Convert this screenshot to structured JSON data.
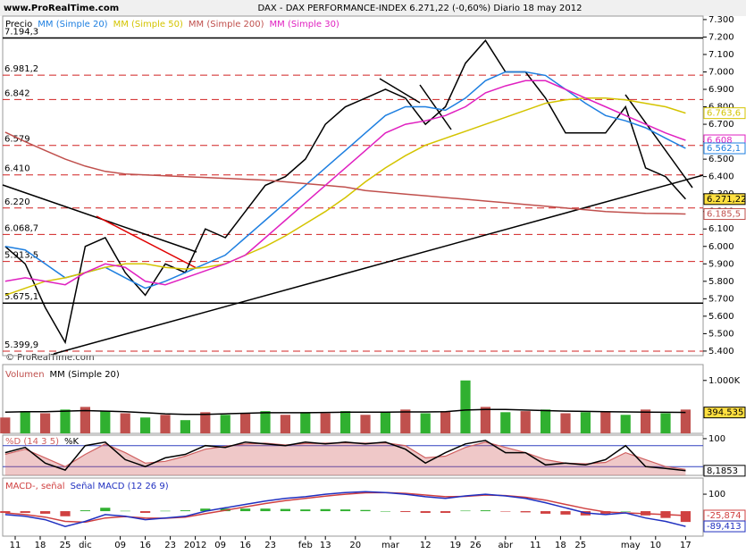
{
  "header": {
    "site": "www.ProRealTime.com",
    "watermark": "© ProRealTime.com"
  },
  "chart_data": [
    {
      "type": "line",
      "title": "DAX - DAX PERFORMANCE-INDEX   6.271,22 (-0,60%)   Diario  18 may 2012",
      "x": [
        -2,
        2,
        6,
        10,
        14,
        18,
        22,
        26,
        30,
        34,
        38,
        42,
        46,
        50,
        54,
        58,
        62,
        66,
        70,
        74,
        78,
        82,
        86,
        90,
        94,
        98,
        102,
        106,
        110,
        114,
        118,
        122,
        126,
        130,
        134
      ],
      "xlim": [
        -2.5,
        137.5
      ],
      "ylim": [
        5374,
        7320
      ],
      "yticks": [
        {
          "value": 5400,
          "label": "5.400"
        },
        {
          "value": 5500,
          "label": "5.500"
        },
        {
          "value": 5600,
          "label": "5.600"
        },
        {
          "value": 5700,
          "label": "5.700"
        },
        {
          "value": 5800,
          "label": "5.800"
        },
        {
          "value": 5900,
          "label": "5.900"
        },
        {
          "value": 6000,
          "label": "6.000"
        },
        {
          "value": 6100,
          "label": "6.100"
        },
        {
          "value": 6200,
          "label": "6.200"
        },
        {
          "value": 6300,
          "label": "6.300"
        },
        {
          "value": 6400,
          "label": "6.400"
        },
        {
          "value": 6500,
          "label": "6.500"
        },
        {
          "value": 6600,
          "label": "6.600"
        },
        {
          "value": 6700,
          "label": "6.700"
        },
        {
          "value": 6800,
          "label": "6.800"
        },
        {
          "value": 6900,
          "label": "6.900"
        },
        {
          "value": 7000,
          "label": "7.000"
        },
        {
          "value": 7100,
          "label": "7.100"
        },
        {
          "value": 7200,
          "label": "7.200"
        },
        {
          "value": 7300,
          "label": "7.300"
        }
      ],
      "series": [
        {
          "name": "Precio",
          "color": "#000000",
          "type": "line",
          "values": [
            6000,
            5900,
            5650,
            5450,
            6000,
            6050,
            5850,
            5720,
            5900,
            5850,
            6100,
            6050,
            6200,
            6350,
            6400,
            6500,
            6700,
            6800,
            6850,
            6900,
            6850,
            6700,
            6800,
            7050,
            7180,
            7000,
            7000,
            6850,
            6650,
            6650,
            6650,
            6800,
            6450,
            6400,
            6271.22
          ]
        },
        {
          "name": "MM (Simple 20)",
          "color": "#1e7fe0",
          "type": "line",
          "values": [
            6000,
            5980,
            5900,
            5820,
            5850,
            5880,
            5820,
            5760,
            5800,
            5850,
            5900,
            5950,
            6050,
            6150,
            6250,
            6350,
            6450,
            6550,
            6650,
            6750,
            6800,
            6800,
            6780,
            6850,
            6950,
            7000,
            7000,
            6980,
            6900,
            6820,
            6750,
            6720,
            6680,
            6620,
            6562.1
          ]
        },
        {
          "name": "MM (Simple 50)",
          "color": "#d4c400",
          "type": "line",
          "values": [
            5720,
            5760,
            5800,
            5820,
            5850,
            5880,
            5900,
            5900,
            5880,
            5870,
            5880,
            5900,
            5950,
            6000,
            6060,
            6130,
            6200,
            6280,
            6370,
            6450,
            6520,
            6580,
            6620,
            6660,
            6700,
            6740,
            6780,
            6820,
            6840,
            6850,
            6850,
            6840,
            6820,
            6800,
            6763.6
          ]
        },
        {
          "name": "MM (Simple 200)",
          "color": "#c0504d",
          "type": "line",
          "values": [
            6655,
            6600,
            6550,
            6500,
            6460,
            6430,
            6415,
            6410,
            6405,
            6400,
            6395,
            6390,
            6385,
            6380,
            6370,
            6360,
            6350,
            6340,
            6320,
            6310,
            6300,
            6290,
            6280,
            6270,
            6260,
            6250,
            6240,
            6230,
            6220,
            6210,
            6200,
            6195,
            6190,
            6188,
            6185.5
          ]
        },
        {
          "name": "MM (Simple 30)",
          "color": "#e020c0",
          "type": "line",
          "values": [
            5800,
            5820,
            5800,
            5780,
            5850,
            5900,
            5880,
            5800,
            5780,
            5820,
            5860,
            5900,
            5950,
            6050,
            6150,
            6250,
            6350,
            6450,
            6550,
            6650,
            6700,
            6720,
            6750,
            6800,
            6880,
            6920,
            6950,
            6950,
            6900,
            6850,
            6800,
            6750,
            6700,
            6650,
            6608
          ]
        }
      ],
      "levels": [
        {
          "value": 7194.3,
          "label": "7.194,3",
          "style": "solid"
        },
        {
          "value": 6981.2,
          "label": "6.981,2",
          "style": "dashed"
        },
        {
          "value": 6842,
          "label": "6.842",
          "style": "dashed"
        },
        {
          "value": 6579,
          "label": "6.579",
          "style": "dashed"
        },
        {
          "value": 6410,
          "label": "6.410",
          "style": "dashed"
        },
        {
          "value": 6220,
          "label": "6.220",
          "style": "dashed"
        },
        {
          "value": 6068.7,
          "label": "6.068,7",
          "style": "dashed"
        },
        {
          "value": 5913.5,
          "label": "5.913,5",
          "style": "dashed"
        },
        {
          "value": 5675.1,
          "label": "5.675,1",
          "style": "solid"
        },
        {
          "value": 5399.9,
          "label": "5.399,9",
          "style": "dashed"
        }
      ],
      "value_tags": [
        {
          "value": 6763.6,
          "label": "6.763,6",
          "color": "#d4c400"
        },
        {
          "value": 6608,
          "label": "6.608",
          "color": "#e020c0"
        },
        {
          "value": 6562.1,
          "label": "6.562,1",
          "color": "#1e7fe0"
        },
        {
          "value": 6271.22,
          "label": "6.271,22",
          "color": "#000000"
        },
        {
          "value": 6185.5,
          "label": "6.185,5",
          "color": "#c0504d"
        }
      ]
    },
    {
      "type": "bar",
      "x": [
        -2,
        2,
        6,
        10,
        14,
        18,
        22,
        26,
        30,
        34,
        38,
        42,
        46,
        50,
        54,
        58,
        62,
        66,
        70,
        74,
        78,
        82,
        86,
        90,
        94,
        98,
        102,
        106,
        110,
        114,
        118,
        122,
        126,
        130,
        134
      ],
      "xlim": [
        -2.5,
        137.5
      ],
      "ylim": [
        0,
        1300
      ],
      "yticks": [
        {
          "value": 1000,
          "label": "1.000K"
        }
      ],
      "series": [
        {
          "name": "Volumen",
          "color": "#c0504d",
          "type": "bar",
          "values": [
            300,
            420,
            380,
            450,
            500,
            420,
            380,
            300,
            350,
            250,
            400,
            350,
            380,
            420,
            350,
            400,
            380,
            420,
            350,
            400,
            450,
            380,
            420,
            1000,
            500,
            400,
            420,
            450,
            380,
            400,
            420,
            350,
            450,
            380,
            450
          ]
        },
        {
          "name": "MM (Simple 20)",
          "color": "#000000",
          "type": "line",
          "values": [
            400,
            410,
            410,
            420,
            430,
            420,
            410,
            390,
            370,
            360,
            360,
            370,
            380,
            390,
            390,
            390,
            395,
            400,
            400,
            400,
            405,
            405,
            410,
            440,
            450,
            450,
            440,
            430,
            420,
            415,
            410,
            405,
            400,
            398,
            394.535
          ]
        }
      ],
      "value_tags": [
        {
          "value": 394.535,
          "label": "394.535",
          "color": "#000000"
        }
      ]
    },
    {
      "type": "line",
      "x": [
        -2,
        2,
        6,
        10,
        14,
        18,
        22,
        26,
        30,
        34,
        38,
        42,
        46,
        50,
        54,
        58,
        62,
        66,
        70,
        74,
        78,
        82,
        86,
        90,
        94,
        98,
        102,
        106,
        110,
        114,
        118,
        122,
        126,
        130,
        134
      ],
      "xlim": [
        -2.5,
        137.5
      ],
      "ylim": [
        -5,
        110
      ],
      "yticks": [
        100
      ],
      "series": [
        {
          "name": "%D (14 3 5)",
          "color": "#d06060",
          "type": "area",
          "values": [
            55,
            70,
            45,
            20,
            55,
            85,
            60,
            30,
            35,
            50,
            70,
            78,
            85,
            87,
            82,
            86,
            87,
            88,
            87,
            88,
            80,
            45,
            50,
            75,
            90,
            75,
            60,
            40,
            30,
            28,
            32,
            60,
            40,
            20,
            12
          ]
        },
        {
          "name": "%K",
          "color": "#000000",
          "type": "line",
          "values": [
            60,
            75,
            30,
            10,
            80,
            90,
            40,
            20,
            45,
            55,
            80,
            75,
            90,
            85,
            80,
            90,
            85,
            90,
            85,
            90,
            70,
            30,
            60,
            85,
            95,
            60,
            60,
            25,
            30,
            25,
            40,
            80,
            20,
            15,
            8.1853
          ]
        }
      ],
      "guides": [
        20,
        80
      ],
      "value_tags": [
        {
          "value": 8.1853,
          "label": "8,1853",
          "color": "#000000"
        }
      ]
    },
    {
      "type": "line",
      "x": [
        -2,
        2,
        6,
        10,
        14,
        18,
        22,
        26,
        30,
        34,
        38,
        42,
        46,
        50,
        54,
        58,
        62,
        66,
        70,
        74,
        78,
        82,
        86,
        90,
        94,
        98,
        102,
        106,
        110,
        114,
        118,
        122,
        126,
        130,
        134
      ],
      "xlim": [
        -2.5,
        137.5
      ],
      "ylim": [
        -147,
        195
      ],
      "yticks": [
        100
      ],
      "series": [
        {
          "type": "histogram",
          "values": [
            -10,
            -10,
            -15,
            -30,
            5,
            20,
            2,
            -10,
            2,
            5,
            15,
            15,
            15,
            15,
            13,
            10,
            12,
            10,
            7,
            0,
            -5,
            -10,
            -10,
            3,
            5,
            -2,
            -7,
            -15,
            -20,
            -25,
            -15,
            0,
            -25,
            -40,
            -63.5
          ]
        },
        {
          "name": "MACD-, señal",
          "color": "#d04040",
          "type": "line",
          "values": [
            -10,
            -20,
            -35,
            -60,
            -65,
            -40,
            -32,
            -40,
            -42,
            -35,
            -15,
            5,
            25,
            45,
            62,
            75,
            88,
            100,
            108,
            110,
            105,
            95,
            85,
            87,
            95,
            92,
            82,
            65,
            40,
            15,
            -5,
            -10,
            -15,
            -20,
            -25.874
          ]
        },
        {
          "name": "Señal MACD (12 26 9)",
          "color": "#2030c0",
          "type": "line",
          "values": [
            -20,
            -30,
            -50,
            -90,
            -60,
            -20,
            -30,
            -50,
            -40,
            -30,
            0,
            20,
            40,
            60,
            75,
            85,
            100,
            110,
            115,
            110,
            100,
            85,
            75,
            90,
            100,
            90,
            75,
            50,
            20,
            -10,
            -20,
            -10,
            -40,
            -60,
            -89.413
          ]
        }
      ],
      "histogram_colors": {
        "up": "#30b030",
        "down": "#d04040"
      },
      "value_tags": [
        {
          "value": -25.874,
          "label": "-25,874",
          "color": "#d04040"
        },
        {
          "value": -89.413,
          "label": "-89,413",
          "color": "#2030c0"
        }
      ],
      "xticks": [
        {
          "value": 0,
          "label": "11"
        },
        {
          "value": 5,
          "label": "18"
        },
        {
          "value": 10,
          "label": "25"
        },
        {
          "value": 14,
          "label": "dic"
        },
        {
          "value": 21,
          "label": "09"
        },
        {
          "value": 26,
          "label": "16"
        },
        {
          "value": 31,
          "label": "23"
        },
        {
          "value": 36,
          "label": "2012"
        },
        {
          "value": 41,
          "label": "09"
        },
        {
          "value": 46,
          "label": "16"
        },
        {
          "value": 51,
          "label": "23"
        },
        {
          "value": 58,
          "label": "feb"
        },
        {
          "value": 62,
          "label": "13"
        },
        {
          "value": 68,
          "label": "20"
        },
        {
          "value": 75,
          "label": "mar"
        },
        {
          "value": 82,
          "label": "12"
        },
        {
          "value": 88,
          "label": "19"
        },
        {
          "value": 92,
          "label": "26"
        },
        {
          "value": 98,
          "label": "abr"
        },
        {
          "value": 104,
          "label": "11"
        },
        {
          "value": 109,
          "label": "18"
        },
        {
          "value": 113,
          "label": "25"
        },
        {
          "value": 123,
          "label": "may"
        },
        {
          "value": 128,
          "label": "10"
        },
        {
          "value": 134,
          "label": "17"
        }
      ]
    }
  ]
}
